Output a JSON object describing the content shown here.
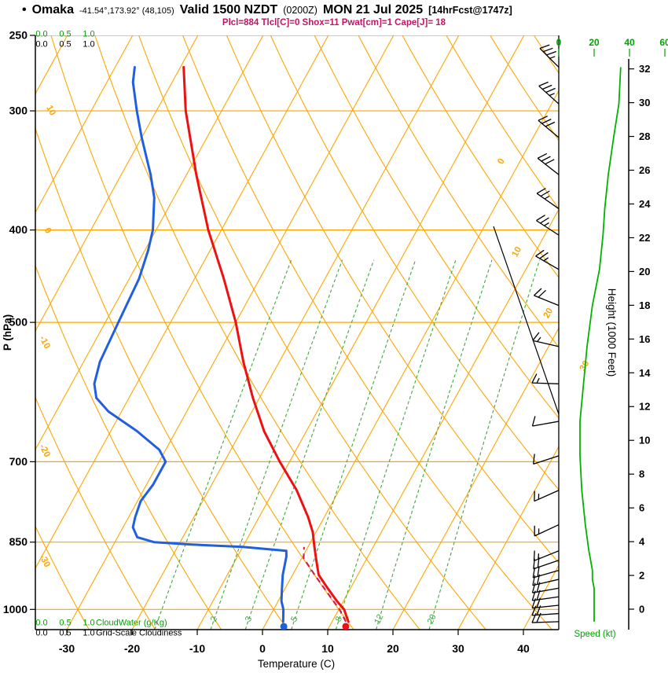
{
  "header": {
    "bullet": "•",
    "station": "Omaka",
    "coords": "-41.54°,173.92° (48,105)",
    "valid": "Valid 1500 NZDT",
    "zulu": "(0200Z)",
    "date": "MON 21 Jul 2025",
    "fcst": "[14hrFcst@1747z]",
    "params": "Plcl=884 Tlcl[C]=0 Shox=11 Pwat[cm]=1 Cape[J]= 18"
  },
  "axes": {
    "pressure_label": "P (hPa)",
    "pressure_ticks": [
      250,
      300,
      400,
      500,
      700,
      850,
      1000
    ],
    "temp_label": "Temperature (C)",
    "temp_ticks": [
      -30,
      -20,
      -10,
      0,
      10,
      20,
      30,
      40
    ],
    "height_label": "Height (1000 Feet)",
    "height_ticks": [
      0,
      2,
      4,
      6,
      8,
      10,
      12,
      14,
      16,
      18,
      20,
      22,
      24,
      26,
      28,
      30,
      32
    ],
    "speed_label": "Speed (kt)",
    "speed_ticks": [
      0,
      20,
      40,
      60
    ],
    "cloud_scale_ticks": [
      "0.0",
      "0.5",
      "1.0"
    ],
    "cloudwater_label": "CloudWater (g/Kg)",
    "cloudiness_label": "Grid-Scale Cloudiness"
  },
  "colors": {
    "grid_orange": "#FFA500",
    "grid_green": "#3DA83D",
    "temperature_red": "#EE1111",
    "dewpoint_blue": "#2060E0",
    "parcel_crimson": "#D4145A",
    "speed_green": "#00B300",
    "scale_green": "#00A300",
    "params_magenta": "#C31466",
    "axis_black": "#000000"
  },
  "chart_data": {
    "type": "skewt",
    "station": "Omaka",
    "pressure_range_hpa": [
      250,
      1050
    ],
    "temp_axis_range_c": [
      -35,
      45
    ],
    "temperature_profile": [
      [
        270,
        -59.5
      ],
      [
        300,
        -55.5
      ],
      [
        350,
        -48.5
      ],
      [
        400,
        -42
      ],
      [
        450,
        -35.5
      ],
      [
        500,
        -30
      ],
      [
        550,
        -25.5
      ],
      [
        600,
        -21
      ],
      [
        650,
        -16.5
      ],
      [
        700,
        -11.5
      ],
      [
        750,
        -6.5
      ],
      [
        800,
        -2.5
      ],
      [
        830,
        -0.5
      ],
      [
        850,
        0.5
      ],
      [
        860,
        1
      ],
      [
        880,
        2
      ],
      [
        900,
        3
      ],
      [
        920,
        4
      ],
      [
        950,
        6.5
      ],
      [
        980,
        9
      ],
      [
        1000,
        10.8
      ],
      [
        1030,
        12.5
      ]
    ],
    "dewpoint_profile": [
      [
        270,
        -67
      ],
      [
        280,
        -66
      ],
      [
        300,
        -63
      ],
      [
        320,
        -60
      ],
      [
        350,
        -55.5
      ],
      [
        370,
        -53
      ],
      [
        400,
        -50.5
      ],
      [
        420,
        -49.5
      ],
      [
        450,
        -48.5
      ],
      [
        500,
        -48
      ],
      [
        550,
        -47.5
      ],
      [
        580,
        -46.5
      ],
      [
        600,
        -45
      ],
      [
        620,
        -42
      ],
      [
        650,
        -36
      ],
      [
        680,
        -31
      ],
      [
        700,
        -29
      ],
      [
        740,
        -29
      ],
      [
        770,
        -29.5
      ],
      [
        800,
        -29
      ],
      [
        820,
        -28.5
      ],
      [
        840,
        -27
      ],
      [
        850,
        -24
      ],
      [
        855,
        -18
      ],
      [
        860,
        -10
      ],
      [
        868,
        -3
      ],
      [
        880,
        -2.5
      ],
      [
        900,
        -2
      ],
      [
        920,
        -1.5
      ],
      [
        950,
        -0.5
      ],
      [
        980,
        0.5
      ],
      [
        1000,
        1.5
      ],
      [
        1030,
        2.5
      ]
    ],
    "parcel_profile": [
      [
        1030,
        12.1
      ],
      [
        1000,
        10.1
      ],
      [
        960,
        6.8
      ],
      [
        920,
        3.4
      ],
      [
        884,
        0.3
      ],
      [
        860,
        -0.6
      ]
    ],
    "surface_temp_point": {
      "p": 1042,
      "t": 12.5
    },
    "surface_dewpoint_point": {
      "p": 1042,
      "t": 3.0
    },
    "wind_barbs": [
      {
        "p": 270,
        "dir": 315,
        "spd": 35
      },
      {
        "p": 295,
        "dir": 312,
        "spd": 34
      },
      {
        "p": 320,
        "dir": 310,
        "spd": 31
      },
      {
        "p": 350,
        "dir": 308,
        "spd": 28
      },
      {
        "p": 380,
        "dir": 305,
        "spd": 26
      },
      {
        "p": 405,
        "dir": 303,
        "spd": 25
      },
      {
        "p": 440,
        "dir": 300,
        "spd": 23
      },
      {
        "p": 480,
        "dir": 292,
        "spd": 19
      },
      {
        "p": 530,
        "dir": 283,
        "spd": 16
      },
      {
        "p": 580,
        "dir": 272,
        "spd": 14
      },
      {
        "p": 635,
        "dir": 260,
        "spd": 12
      },
      {
        "p": 690,
        "dir": 252,
        "spd": 12
      },
      {
        "p": 750,
        "dir": 246,
        "spd": 13
      },
      {
        "p": 815,
        "dir": 245,
        "spd": 15
      },
      {
        "p": 868,
        "dir": 248,
        "spd": 17
      },
      {
        "p": 888,
        "dir": 251,
        "spd": 18
      },
      {
        "p": 910,
        "dir": 254,
        "spd": 19
      },
      {
        "p": 930,
        "dir": 257,
        "spd": 19
      },
      {
        "p": 950,
        "dir": 260,
        "spd": 20
      },
      {
        "p": 970,
        "dir": 262,
        "spd": 20
      },
      {
        "p": 990,
        "dir": 264,
        "spd": 20
      },
      {
        "p": 1010,
        "dir": 266,
        "spd": 20
      },
      {
        "p": 1030,
        "dir": 268,
        "spd": 20
      }
    ],
    "grid": {
      "isotherms": {
        "min": -90,
        "max": 50,
        "step": 10
      },
      "dry_adiabats": {
        "min": -40,
        "max": 130,
        "step": 10
      },
      "mixing_ratio_lines": [
        1,
        2,
        3,
        5,
        8,
        12,
        20
      ],
      "mixing_ratio_labels": [
        2,
        3,
        5,
        8,
        12,
        20
      ],
      "isotherm_labels_right": {
        "values": [
          0,
          10,
          20,
          30
        ],
        "y": [
          207,
          322,
          400,
          467
        ]
      },
      "dry_adiabat_labels_left": {
        "values": [
          10,
          0,
          -10,
          -20,
          -30
        ],
        "y": [
          142,
          295,
          437,
          575,
          715
        ]
      }
    }
  }
}
